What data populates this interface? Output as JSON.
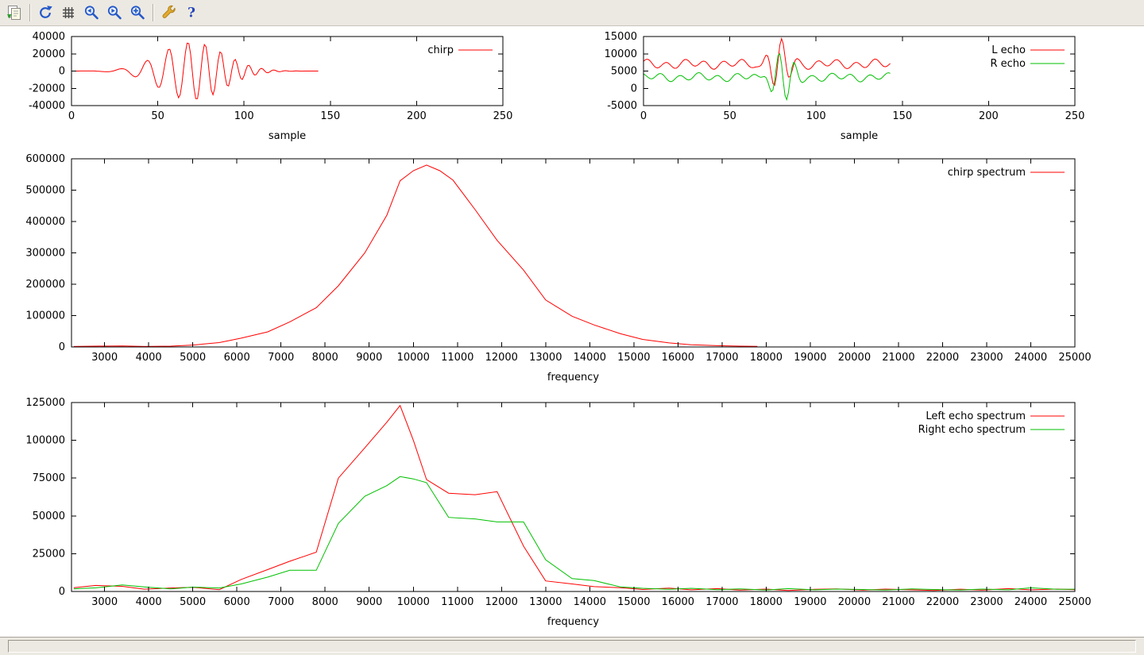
{
  "window": {
    "toolbar": {
      "buttons": [
        {
          "name": "copy-to-clipboard",
          "icon": "copy-clipboard-icon"
        },
        {
          "name": "replot",
          "icon": "replot-icon"
        },
        {
          "name": "toggle-grid",
          "icon": "grid-icon"
        },
        {
          "name": "zoom-previous",
          "icon": "zoom-previous-icon"
        },
        {
          "name": "zoom-next",
          "icon": "zoom-next-icon"
        },
        {
          "name": "autoscale",
          "icon": "autoscale-icon"
        },
        {
          "name": "configure",
          "icon": "config-wrench-icon"
        },
        {
          "name": "help",
          "icon": "help-icon"
        }
      ]
    },
    "statusbar": {
      "text": ""
    }
  },
  "colors": {
    "series_red": "#ff0000",
    "series_green": "#00c000",
    "axis": "#000000",
    "chrome_bg": "#ece9e2"
  },
  "chart_data": [
    {
      "type": "line",
      "title": "",
      "xlabel": "sample",
      "ylabel": "",
      "xlim": [
        0,
        250
      ],
      "ylim": [
        -40000,
        40000
      ],
      "xticks": [
        0,
        50,
        100,
        150,
        200,
        250
      ],
      "yticks": [
        -40000,
        -20000,
        0,
        20000,
        40000
      ],
      "grid": false,
      "legend_position": "top-right-inside",
      "series": [
        {
          "name": "chirp",
          "color": "#ff0000",
          "synth": {
            "n": 144,
            "baseline": 0,
            "chirp": {
              "amp": 34000,
              "center": 70,
              "width": 26,
              "f0": 0.03,
              "f1": 0.17
            }
          }
        }
      ]
    },
    {
      "type": "line",
      "title": "",
      "xlabel": "sample",
      "ylabel": "",
      "xlim": [
        0,
        250
      ],
      "ylim": [
        -5000,
        15000
      ],
      "xticks": [
        0,
        50,
        100,
        150,
        200,
        250
      ],
      "yticks": [
        -5000,
        0,
        5000,
        10000,
        15000
      ],
      "grid": false,
      "legend_position": "top-right-inside",
      "series": [
        {
          "name": "L echo",
          "color": "#ff0000",
          "synth": {
            "n": 144,
            "baseline": 7000,
            "ripples": [
              {
                "amp": 1000,
                "period": 11,
                "phase": 0.3
              },
              {
                "amp": 500,
                "period": 27,
                "phase": 1.5
              }
            ],
            "burst": {
              "amp": 6500,
              "center": 78,
              "width": 8,
              "period": 9,
              "phase": 0
            }
          }
        },
        {
          "name": "R echo",
          "color": "#00c000",
          "synth": {
            "n": 144,
            "baseline": 3200,
            "ripples": [
              {
                "amp": 900,
                "period": 11,
                "phase": 2.1
              },
              {
                "amp": 450,
                "period": 27,
                "phase": 0.4
              }
            ],
            "burst": {
              "amp": 7200,
              "center": 80,
              "width": 8,
              "period": 9,
              "phase": 2.5
            }
          }
        }
      ]
    },
    {
      "type": "line",
      "title": "",
      "xlabel": "frequency",
      "ylabel": "",
      "xlim": [
        2250,
        25000
      ],
      "ylim": [
        0,
        600000
      ],
      "xticks": [
        3000,
        4000,
        5000,
        6000,
        7000,
        8000,
        9000,
        10000,
        11000,
        12000,
        13000,
        14000,
        15000,
        16000,
        17000,
        18000,
        19000,
        20000,
        21000,
        22000,
        23000,
        24000,
        25000
      ],
      "yticks": [
        0,
        100000,
        200000,
        300000,
        400000,
        500000,
        600000
      ],
      "grid": false,
      "legend_position": "top-right-inside",
      "series": [
        {
          "name": "chirp spectrum",
          "color": "#ff0000",
          "points": [
            [
              2300,
              1500
            ],
            [
              2800,
              2500
            ],
            [
              3400,
              3200
            ],
            [
              3900,
              1500
            ],
            [
              4500,
              2500
            ],
            [
              5000,
              6000
            ],
            [
              5600,
              14000
            ],
            [
              6100,
              28000
            ],
            [
              6700,
              48000
            ],
            [
              7200,
              80000
            ],
            [
              7800,
              125000
            ],
            [
              8300,
              195000
            ],
            [
              8900,
              300000
            ],
            [
              9400,
              420000
            ],
            [
              9700,
              530000
            ],
            [
              10000,
              562000
            ],
            [
              10300,
              580000
            ],
            [
              10600,
              562000
            ],
            [
              10900,
              532000
            ],
            [
              11400,
              438000
            ],
            [
              11900,
              340000
            ],
            [
              12500,
              245000
            ],
            [
              13000,
              150000
            ],
            [
              13600,
              98000
            ],
            [
              14100,
              70000
            ],
            [
              14700,
              42000
            ],
            [
              15200,
              24000
            ],
            [
              15800,
              13000
            ],
            [
              16300,
              7000
            ],
            [
              16900,
              4000
            ],
            [
              17400,
              2500
            ],
            [
              17800,
              1800
            ]
          ]
        }
      ]
    },
    {
      "type": "line",
      "title": "",
      "xlabel": "frequency",
      "ylabel": "",
      "xlim": [
        2250,
        25000
      ],
      "ylim": [
        0,
        125000
      ],
      "xticks": [
        3000,
        4000,
        5000,
        6000,
        7000,
        8000,
        9000,
        10000,
        11000,
        12000,
        13000,
        14000,
        15000,
        16000,
        17000,
        18000,
        19000,
        20000,
        21000,
        22000,
        23000,
        24000,
        25000
      ],
      "yticks": [
        0,
        25000,
        50000,
        75000,
        100000,
        125000
      ],
      "grid": false,
      "legend_position": "top-right-inside",
      "series": [
        {
          "name": "Left echo spectrum",
          "color": "#ff0000",
          "points": [
            [
              2300,
              2500
            ],
            [
              2800,
              4000
            ],
            [
              3400,
              3400
            ],
            [
              3900,
              1500
            ],
            [
              4500,
              2300
            ],
            [
              5000,
              2800
            ],
            [
              5600,
              1200
            ],
            [
              6100,
              8000
            ],
            [
              6700,
              14500
            ],
            [
              7200,
              20000
            ],
            [
              7800,
              26000
            ],
            [
              8300,
              75000
            ],
            [
              8900,
              95000
            ],
            [
              9400,
              112000
            ],
            [
              9700,
              123000
            ],
            [
              10000,
              100000
            ],
            [
              10300,
              74000
            ],
            [
              10800,
              65000
            ],
            [
              11400,
              64000
            ],
            [
              11900,
              66000
            ],
            [
              12500,
              30000
            ],
            [
              13000,
              7000
            ],
            [
              13600,
              5000
            ],
            [
              14100,
              3200
            ],
            [
              14700,
              2500
            ],
            [
              15200,
              1300
            ],
            [
              15800,
              2200
            ],
            [
              16300,
              1100
            ],
            [
              16900,
              1900
            ],
            [
              17400,
              900
            ],
            [
              18000,
              1600
            ],
            [
              18500,
              700
            ],
            [
              19100,
              1400
            ],
            [
              19600,
              1700
            ],
            [
              20200,
              900
            ],
            [
              20700,
              1600
            ],
            [
              21300,
              1100
            ],
            [
              21800,
              700
            ],
            [
              22400,
              1500
            ],
            [
              22900,
              900
            ],
            [
              23500,
              1900
            ],
            [
              24000,
              1100
            ],
            [
              24600,
              1600
            ],
            [
              25000,
              1200
            ]
          ]
        },
        {
          "name": "Right echo spectrum",
          "color": "#00c000",
          "points": [
            [
              2300,
              1700
            ],
            [
              2800,
              2400
            ],
            [
              3400,
              4300
            ],
            [
              3900,
              3000
            ],
            [
              4500,
              1700
            ],
            [
              5000,
              2900
            ],
            [
              5600,
              2300
            ],
            [
              6100,
              5000
            ],
            [
              6700,
              9500
            ],
            [
              7200,
              14000
            ],
            [
              7800,
              14000
            ],
            [
              8300,
              45000
            ],
            [
              8900,
              63000
            ],
            [
              9400,
              70000
            ],
            [
              9700,
              76000
            ],
            [
              10000,
              74500
            ],
            [
              10300,
              72000
            ],
            [
              10800,
              49000
            ],
            [
              11400,
              48000
            ],
            [
              11900,
              46000
            ],
            [
              12500,
              46000
            ],
            [
              13000,
              21000
            ],
            [
              13600,
              8500
            ],
            [
              14100,
              7200
            ],
            [
              14700,
              3000
            ],
            [
              15200,
              2100
            ],
            [
              15800,
              1400
            ],
            [
              16300,
              2100
            ],
            [
              16900,
              1200
            ],
            [
              17400,
              1700
            ],
            [
              18000,
              1000
            ],
            [
              18500,
              1900
            ],
            [
              19100,
              1100
            ],
            [
              19600,
              1600
            ],
            [
              20200,
              1300
            ],
            [
              20700,
              1000
            ],
            [
              21300,
              1700
            ],
            [
              21800,
              1300
            ],
            [
              22400,
              1000
            ],
            [
              22900,
              1600
            ],
            [
              23500,
              1100
            ],
            [
              24000,
              2400
            ],
            [
              24600,
              1400
            ],
            [
              25000,
              1500
            ]
          ]
        }
      ]
    }
  ]
}
